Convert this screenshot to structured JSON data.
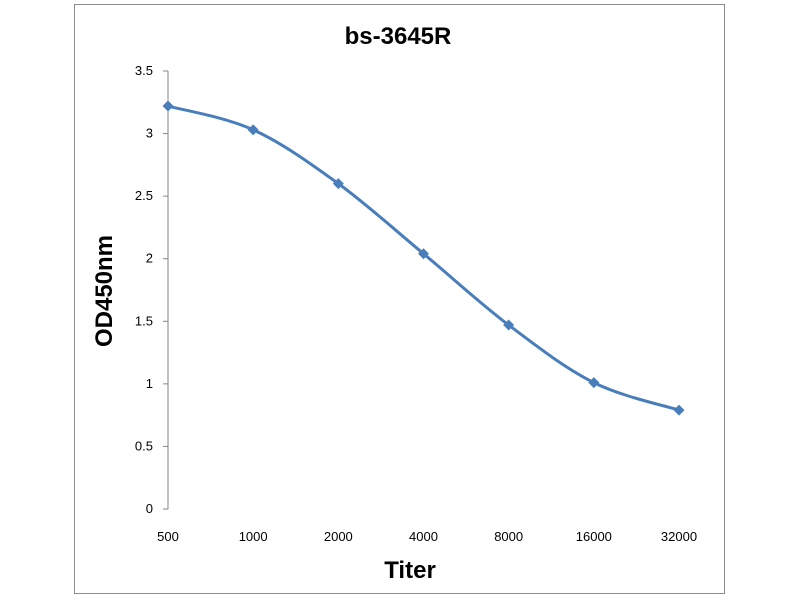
{
  "chart_data": {
    "type": "line",
    "title": "bs-3645R",
    "xlabel": "Titer",
    "ylabel": "OD450nm",
    "categories": [
      "500",
      "1000",
      "2000",
      "4000",
      "8000",
      "16000",
      "32000"
    ],
    "series": [
      {
        "values": [
          3.22,
          3.03,
          2.6,
          2.04,
          1.47,
          1.01,
          0.79
        ],
        "color": "#4a7ebb",
        "marker": "diamond",
        "smooth": true
      }
    ],
    "ylim": [
      0,
      3.5
    ],
    "yticks": [
      "0",
      "0.5",
      "1",
      "1.5",
      "2",
      "2.5",
      "3",
      "3.5"
    ],
    "grid": false,
    "legend": "none"
  }
}
